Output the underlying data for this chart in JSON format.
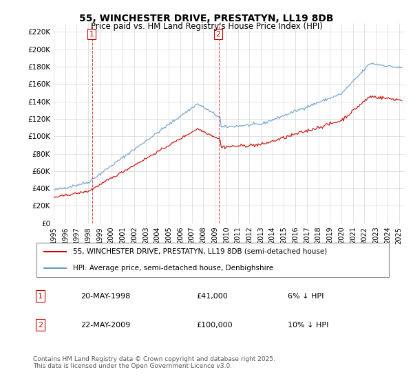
{
  "title": "55, WINCHESTER DRIVE, PRESTATYN, LL19 8DB",
  "subtitle": "Price paid vs. HM Land Registry's House Price Index (HPI)",
  "ylabel_vals": [
    0,
    20000,
    40000,
    60000,
    80000,
    100000,
    120000,
    140000,
    160000,
    180000,
    200000,
    220000
  ],
  "ylim": [
    0,
    230000
  ],
  "xlim_start": 1995.0,
  "xlim_end": 2025.5,
  "legend_line1": "55, WINCHESTER DRIVE, PRESTATYN, LL19 8DB (semi-detached house)",
  "legend_line2": "HPI: Average price, semi-detached house, Denbighshire",
  "sale1_date": "20-MAY-1998",
  "sale1_price": "£41,000",
  "sale1_hpi": "6% ↓ HPI",
  "sale2_date": "22-MAY-2009",
  "sale2_price": "£100,000",
  "sale2_hpi": "10% ↓ HPI",
  "footnote": "Contains HM Land Registry data © Crown copyright and database right 2025.\nThis data is licensed under the Open Government Licence v3.0.",
  "color_red": "#cc0000",
  "color_blue": "#6699cc",
  "color_vline": "#cc0000",
  "background_color": "#ffffff",
  "grid_color": "#cccccc"
}
